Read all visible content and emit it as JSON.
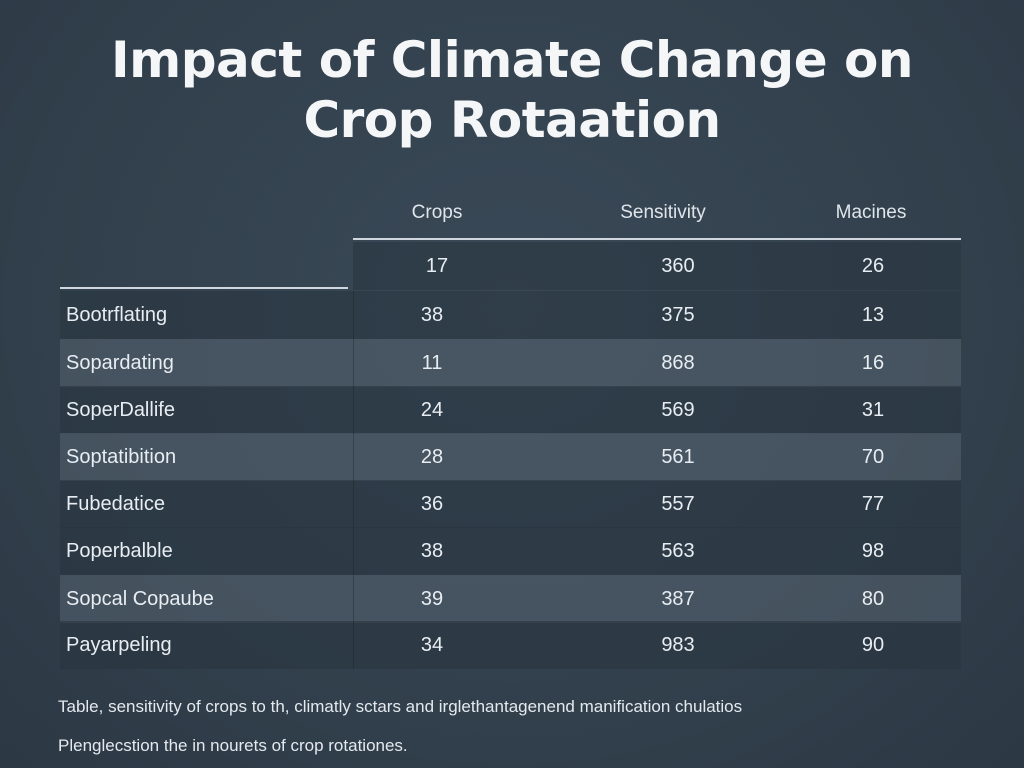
{
  "title": {
    "line1": "Impact  of Climate Change on",
    "line2": "Crop Rotaation"
  },
  "table": {
    "columns": [
      "Crops",
      "Sensitivity",
      "Macines"
    ],
    "first_row": [
      "17",
      "360",
      "26"
    ],
    "rows": [
      {
        "name": "Bootrflating",
        "values": [
          "38",
          "375",
          "13"
        ]
      },
      {
        "name": "Sopardating",
        "values": [
          "11",
          "868",
          "16"
        ]
      },
      {
        "name": "SoperDallife",
        "values": [
          "24",
          "569",
          "31"
        ]
      },
      {
        "name": "Soptatibition",
        "values": [
          "28",
          "561",
          "70"
        ]
      },
      {
        "name": "Fubedatice",
        "values": [
          "36",
          "557",
          "77"
        ]
      },
      {
        "name": "Poperbalble",
        "values": [
          "38",
          "563",
          "98"
        ]
      },
      {
        "name": "Sopcal Copaube",
        "values": [
          "39",
          "387",
          "80"
        ]
      },
      {
        "name": "Payarpeling",
        "values": [
          "34",
          "983",
          "90"
        ]
      }
    ]
  },
  "caption": {
    "line1": "Table, sensitivity of crops to th, climatly sctars and irglethantagenend manification chulatios",
    "line2": "Plenglecstion the in nourets of crop rotationes."
  }
}
